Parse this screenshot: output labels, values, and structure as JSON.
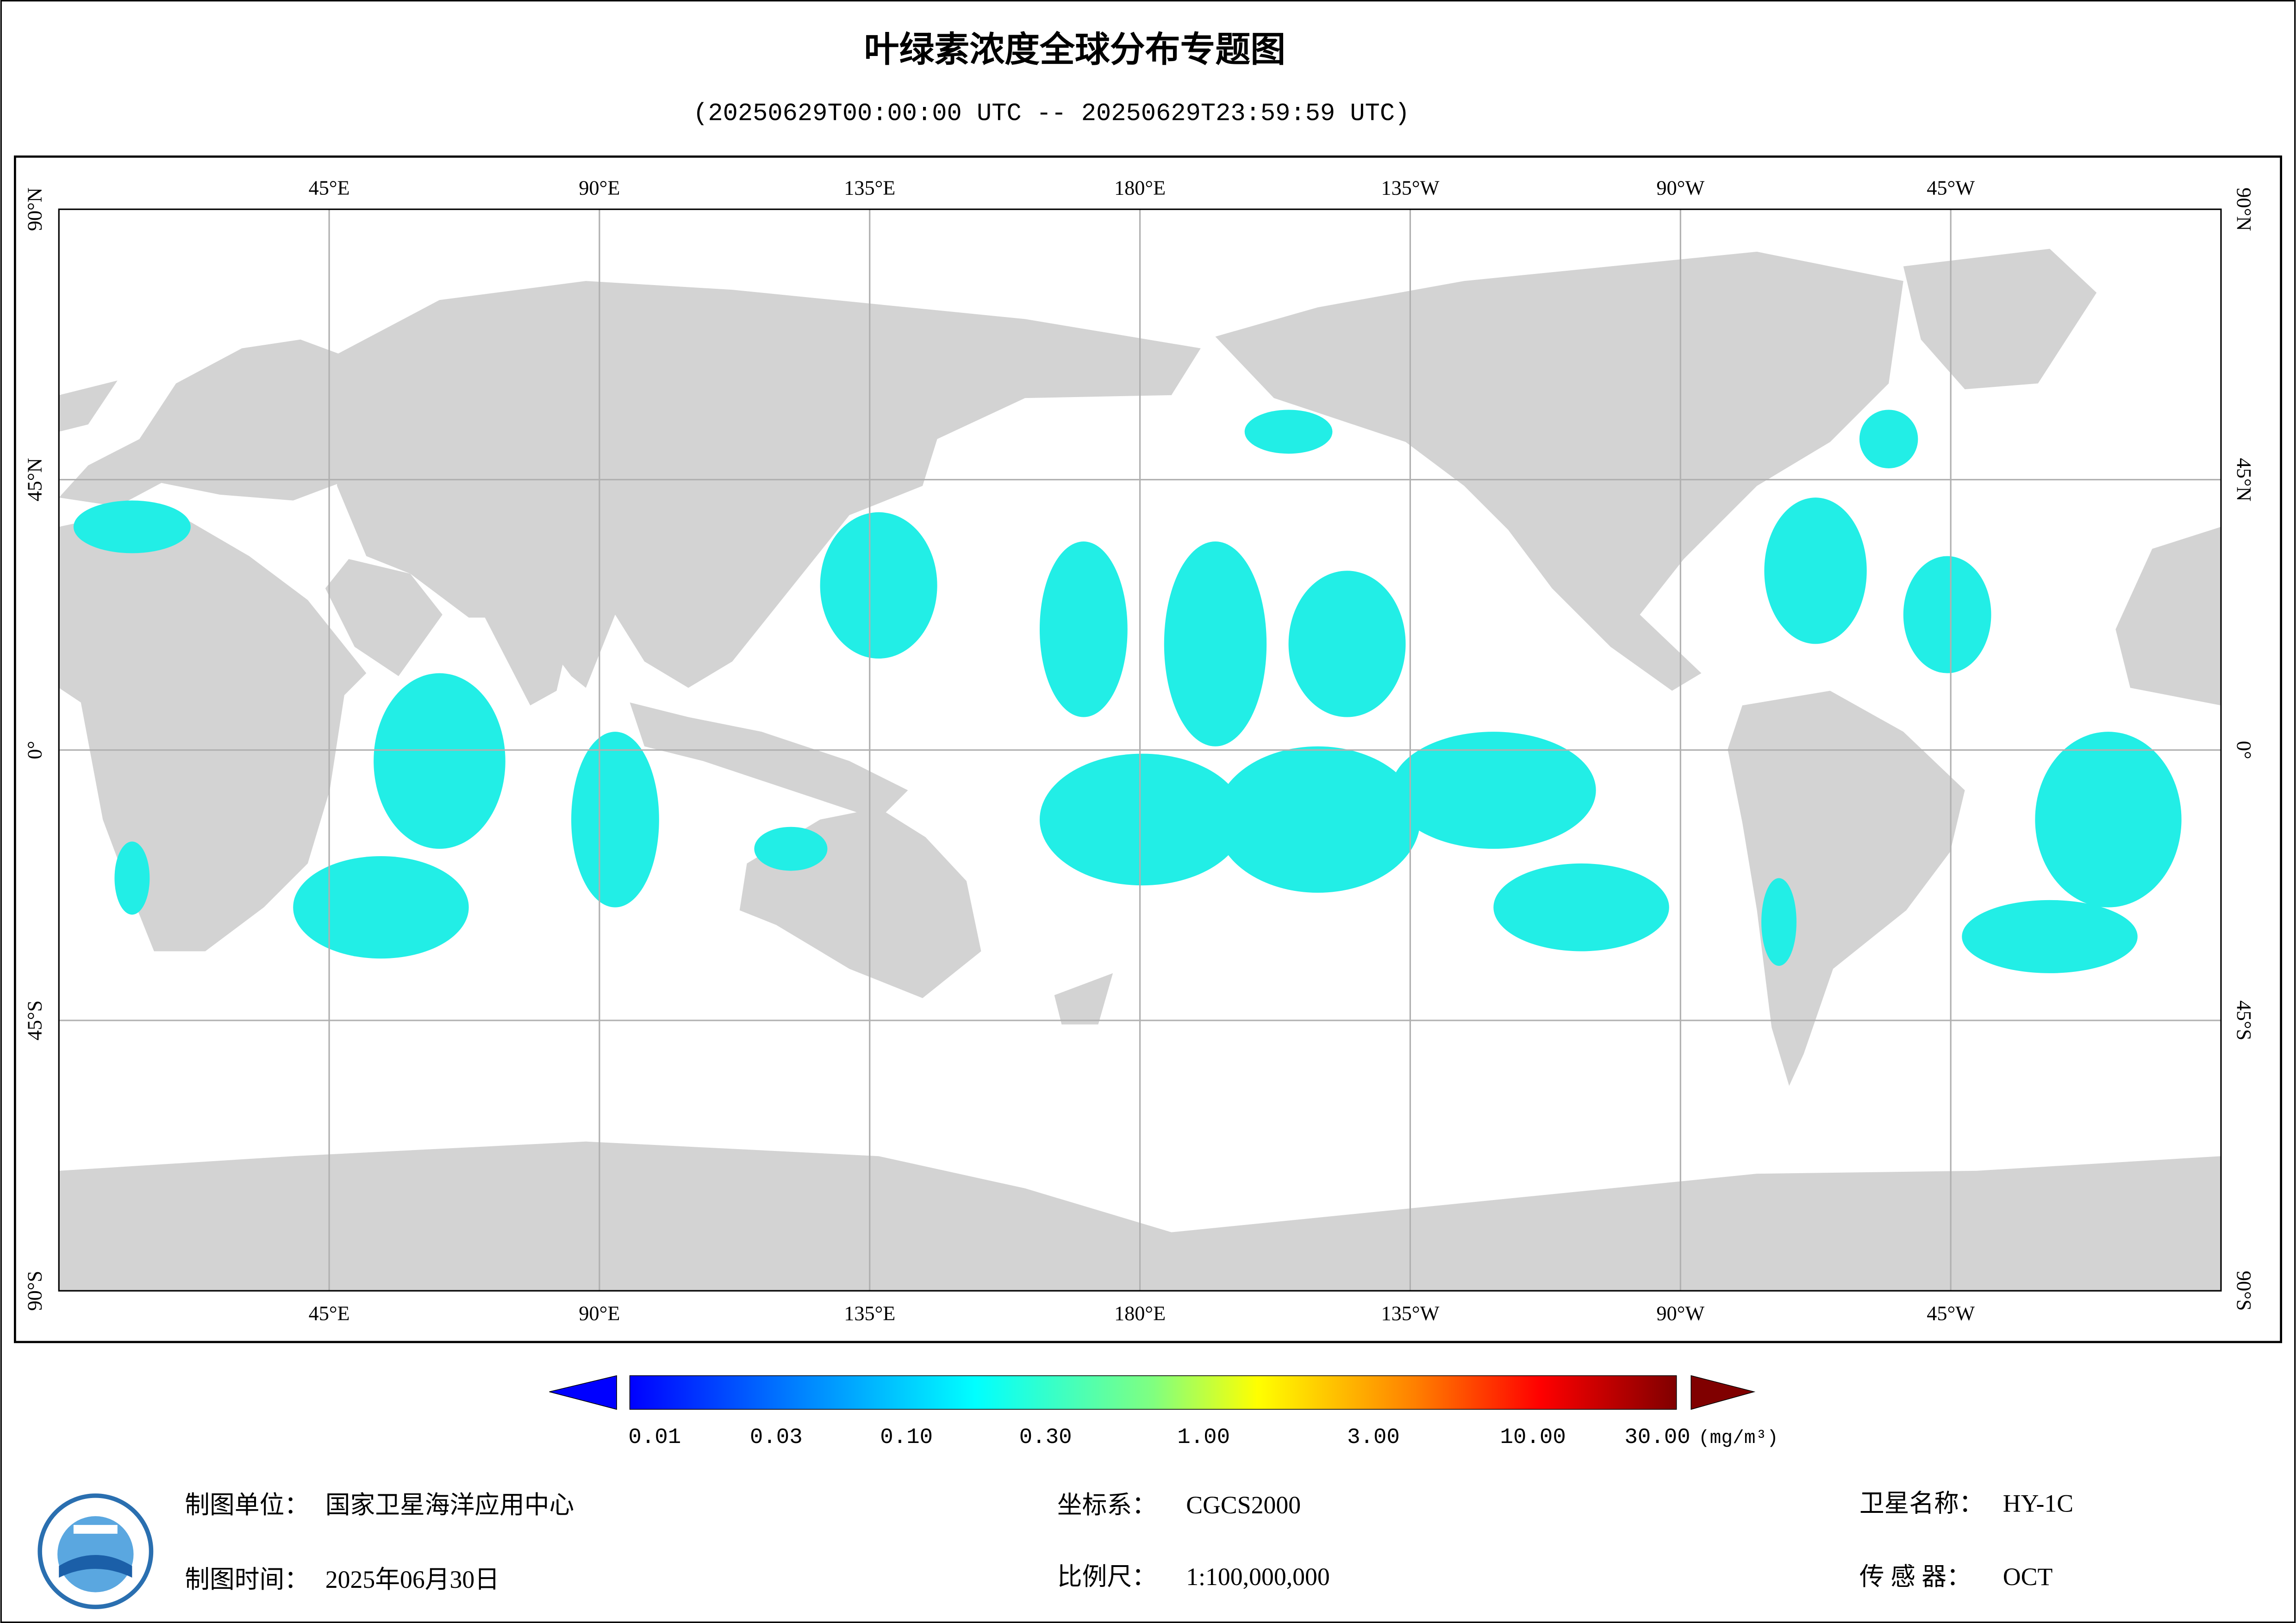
{
  "header": {
    "title": "叶绿素浓度全球分布专题图",
    "subtitle": "(20250629T00:00:00 UTC -- 20250629T23:59:59 UTC)"
  },
  "map": {
    "lon_labels": [
      "45°E",
      "90°E",
      "135°E",
      "180°E",
      "135°W",
      "90°W",
      "45°W"
    ],
    "lat_labels": [
      "90°N",
      "45°N",
      "0°",
      "45°S",
      "90°S"
    ]
  },
  "colorbar": {
    "labels": [
      "0.01",
      "0.03",
      "0.10",
      "0.30",
      "1.00",
      "3.00",
      "10.00",
      "30.00"
    ],
    "unit": "(mg/m³)"
  },
  "footer": {
    "unit": {
      "label": "制图单位：",
      "value": "国家卫星海洋应用中心"
    },
    "date": {
      "label": "制图时间：",
      "value": "2025年06月30日"
    },
    "crs": {
      "label": "坐标系：",
      "value": "CGCS2000"
    },
    "scale": {
      "label": "比例尺：",
      "value": "1:100,000,000"
    },
    "satellite": {
      "label": "卫星名称：",
      "value": "HY-1C"
    },
    "sensor": {
      "label": "传 感 器：",
      "value": "OCT"
    }
  }
}
